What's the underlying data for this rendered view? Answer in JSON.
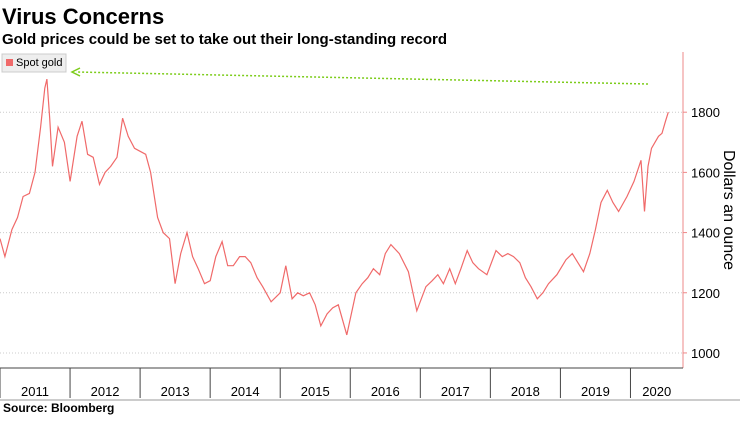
{
  "chart_data": {
    "type": "line",
    "title": "Virus Concerns",
    "subtitle": "Gold prices could be set to take out their long-standing record",
    "source": "Source: Bloomberg",
    "y_label": "Dollars an ounce",
    "xlim": [
      2011,
      2020.75
    ],
    "xticks": [
      2011,
      2012,
      2013,
      2014,
      2015,
      2016,
      2017,
      2018,
      2019,
      2020
    ],
    "ylim": [
      950,
      2000
    ],
    "yticks": [
      1000,
      1200,
      1400,
      1600,
      1800
    ],
    "grid": true,
    "legend": "top-left",
    "x": [
      2011.0,
      2011.07,
      2011.17,
      2011.25,
      2011.33,
      2011.42,
      2011.5,
      2011.58,
      2011.64,
      2011.67,
      2011.71,
      2011.75,
      2011.83,
      2011.92,
      2012.0,
      2012.1,
      2012.17,
      2012.25,
      2012.33,
      2012.42,
      2012.5,
      2012.58,
      2012.67,
      2012.75,
      2012.83,
      2012.92,
      2013.0,
      2013.08,
      2013.15,
      2013.25,
      2013.33,
      2013.42,
      2013.5,
      2013.58,
      2013.67,
      2013.75,
      2013.83,
      2013.92,
      2014.0,
      2014.08,
      2014.17,
      2014.25,
      2014.33,
      2014.42,
      2014.5,
      2014.58,
      2014.67,
      2014.75,
      2014.87,
      2015.0,
      2015.08,
      2015.17,
      2015.25,
      2015.33,
      2015.42,
      2015.5,
      2015.58,
      2015.67,
      2015.75,
      2015.83,
      2015.95,
      2016.08,
      2016.17,
      2016.25,
      2016.33,
      2016.42,
      2016.5,
      2016.58,
      2016.7,
      2016.83,
      2016.95,
      2017.08,
      2017.17,
      2017.25,
      2017.33,
      2017.42,
      2017.5,
      2017.58,
      2017.67,
      2017.75,
      2017.83,
      2017.95,
      2018.08,
      2018.17,
      2018.25,
      2018.33,
      2018.42,
      2018.5,
      2018.58,
      2018.67,
      2018.75,
      2018.83,
      2018.95,
      2019.08,
      2019.17,
      2019.25,
      2019.33,
      2019.42,
      2019.5,
      2019.58,
      2019.67,
      2019.75,
      2019.83,
      2019.95,
      2020.05,
      2020.15,
      2020.2,
      2020.25,
      2020.3,
      2020.35,
      2020.4,
      2020.45,
      2020.5,
      2020.54
    ],
    "series": [
      {
        "name": "Spot gold",
        "color": "#f06a6a",
        "values": [
          1380,
          1320,
          1410,
          1450,
          1520,
          1530,
          1600,
          1750,
          1880,
          1910,
          1780,
          1620,
          1750,
          1700,
          1570,
          1720,
          1770,
          1660,
          1650,
          1560,
          1600,
          1620,
          1650,
          1780,
          1720,
          1680,
          1670,
          1660,
          1600,
          1450,
          1400,
          1380,
          1230,
          1330,
          1400,
          1320,
          1280,
          1230,
          1240,
          1320,
          1370,
          1290,
          1290,
          1320,
          1320,
          1300,
          1250,
          1220,
          1170,
          1200,
          1290,
          1180,
          1200,
          1190,
          1200,
          1160,
          1090,
          1130,
          1150,
          1160,
          1060,
          1200,
          1230,
          1250,
          1280,
          1260,
          1330,
          1360,
          1330,
          1270,
          1140,
          1220,
          1240,
          1260,
          1230,
          1280,
          1230,
          1280,
          1340,
          1300,
          1280,
          1260,
          1340,
          1320,
          1330,
          1320,
          1300,
          1250,
          1220,
          1180,
          1200,
          1230,
          1260,
          1310,
          1330,
          1300,
          1270,
          1330,
          1410,
          1500,
          1540,
          1500,
          1470,
          1520,
          1570,
          1640,
          1470,
          1620,
          1680,
          1700,
          1720,
          1730,
          1770,
          1800
        ]
      }
    ]
  }
}
